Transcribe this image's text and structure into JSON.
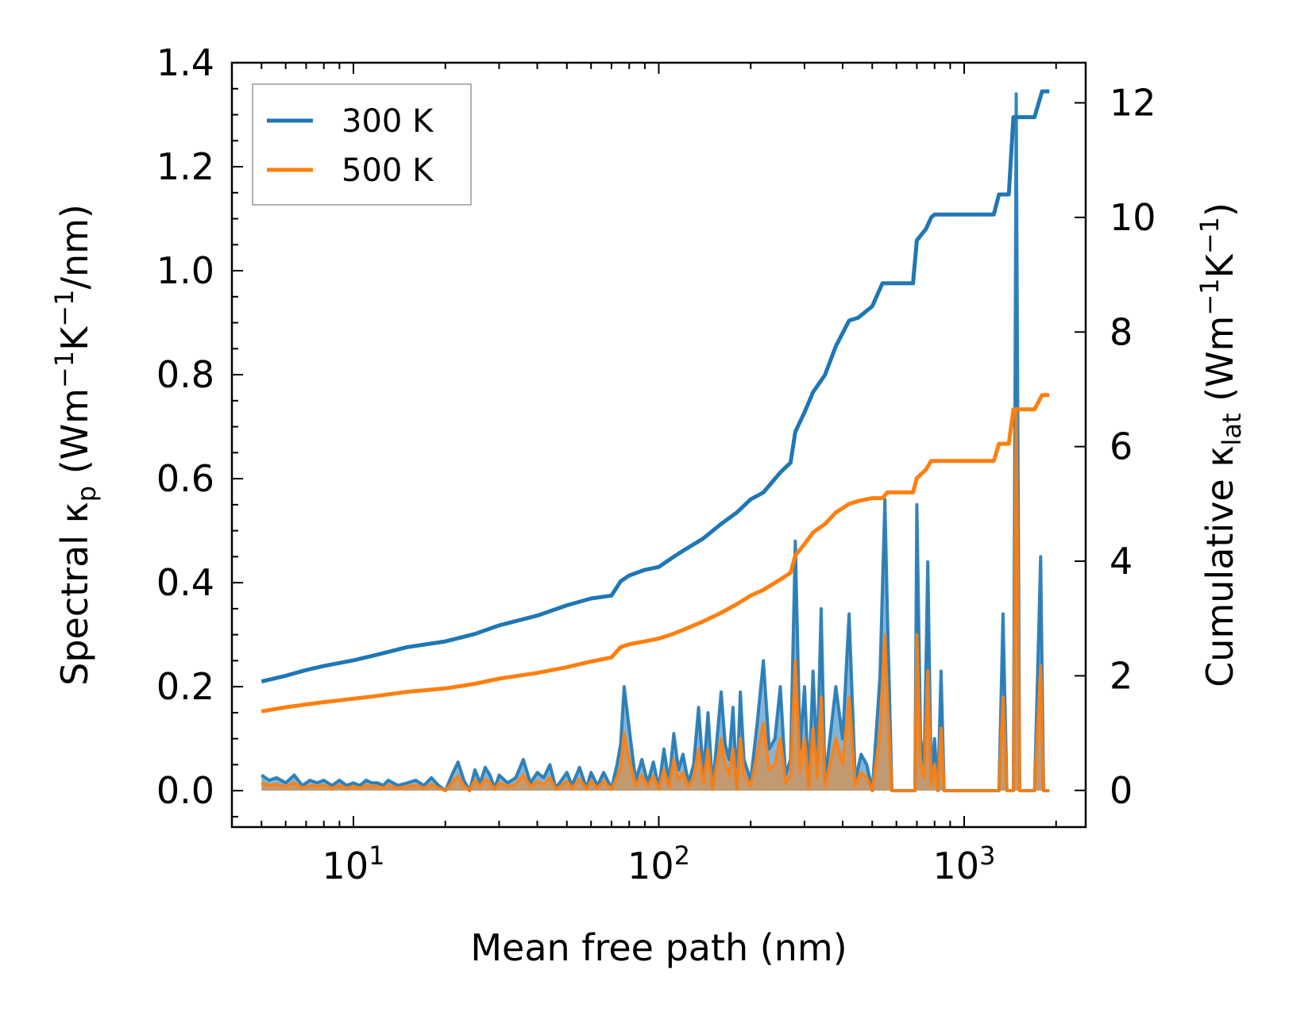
{
  "chart_data": {
    "type": "line",
    "title": "",
    "xlabel": "Mean free path (nm)",
    "ylabel_left": {
      "pre": "Spectral κ",
      "sub": "p",
      "post": " (Wm",
      "sup1": "−1",
      "mid": "K",
      "sup2": "−1",
      "tail": "/nm)"
    },
    "ylabel_right": {
      "pre": "Cumulative κ",
      "sub": "lat",
      "post": " (Wm",
      "sup1": "−1",
      "mid": "K",
      "sup2": "−1",
      "tail": ")"
    },
    "xscale": "log",
    "xlim": [
      4.0,
      2500
    ],
    "ylim_left": [
      -0.07,
      1.4
    ],
    "ylim_right": [
      -0.64,
      12.7
    ],
    "x_tick_labels": [
      {
        "value": 10,
        "base": "10",
        "exp": "1"
      },
      {
        "value": 100,
        "base": "10",
        "exp": "2"
      },
      {
        "value": 1000,
        "base": "10",
        "exp": "3"
      }
    ],
    "y_left_ticks": [
      {
        "value": 0.0,
        "label": "0.0"
      },
      {
        "value": 0.2,
        "label": "0.2"
      },
      {
        "value": 0.4,
        "label": "0.4"
      },
      {
        "value": 0.6,
        "label": "0.6"
      },
      {
        "value": 0.8,
        "label": "0.8"
      },
      {
        "value": 1.0,
        "label": "1.0"
      },
      {
        "value": 1.2,
        "label": "1.2"
      },
      {
        "value": 1.4,
        "label": "1.4"
      }
    ],
    "y_right_ticks": [
      {
        "value": 0,
        "label": "0"
      },
      {
        "value": 2,
        "label": "2"
      },
      {
        "value": 4,
        "label": "4"
      },
      {
        "value": 6,
        "label": "6"
      },
      {
        "value": 8,
        "label": "8"
      },
      {
        "value": 10,
        "label": "10"
      },
      {
        "value": 12,
        "label": "12"
      }
    ],
    "legend": {
      "location": "upper-left",
      "entries": [
        {
          "name": "300 K",
          "color": "#1f77b4"
        },
        {
          "name": "500 K",
          "color": "#ff7f0e"
        }
      ]
    },
    "series": [
      {
        "name": "300 K cumulative",
        "axis": "right",
        "color": "#1f77b4",
        "x": [
          5,
          6,
          7,
          8,
          10,
          12,
          15,
          20,
          25,
          30,
          40,
          50,
          60,
          70,
          75,
          80,
          90,
          100,
          110,
          120,
          140,
          160,
          180,
          200,
          220,
          250,
          270,
          280,
          300,
          320,
          350,
          380,
          420,
          450,
          500,
          540,
          560,
          680,
          700,
          750,
          780,
          800,
          1000,
          1250,
          1300,
          1400,
          1450,
          1500,
          1600,
          1700,
          1800,
          1900
        ],
        "y": [
          1.9,
          2.0,
          2.1,
          2.17,
          2.27,
          2.37,
          2.5,
          2.6,
          2.73,
          2.88,
          3.05,
          3.23,
          3.35,
          3.4,
          3.65,
          3.75,
          3.85,
          3.9,
          4.05,
          4.18,
          4.4,
          4.65,
          4.85,
          5.08,
          5.2,
          5.55,
          5.72,
          6.26,
          6.6,
          6.95,
          7.25,
          7.75,
          8.2,
          8.25,
          8.45,
          8.85,
          8.85,
          8.85,
          9.6,
          9.8,
          10.0,
          10.05,
          10.05,
          10.05,
          10.4,
          10.4,
          11.75,
          11.75,
          11.75,
          11.75,
          12.2,
          12.2
        ]
      },
      {
        "name": "500 K cumulative",
        "axis": "right",
        "color": "#ff7f0e",
        "x": [
          5,
          6,
          7,
          8,
          10,
          12,
          15,
          20,
          25,
          30,
          40,
          50,
          60,
          70,
          75,
          80,
          90,
          100,
          110,
          120,
          140,
          160,
          180,
          200,
          220,
          250,
          270,
          280,
          300,
          320,
          350,
          380,
          420,
          450,
          500,
          540,
          560,
          680,
          700,
          750,
          780,
          800,
          1000,
          1250,
          1300,
          1400,
          1450,
          1500,
          1600,
          1700,
          1800,
          1900
        ],
        "y": [
          1.38,
          1.45,
          1.5,
          1.54,
          1.6,
          1.65,
          1.72,
          1.78,
          1.86,
          1.95,
          2.05,
          2.15,
          2.25,
          2.32,
          2.5,
          2.55,
          2.6,
          2.65,
          2.72,
          2.8,
          2.95,
          3.1,
          3.25,
          3.4,
          3.5,
          3.68,
          3.8,
          4.1,
          4.3,
          4.5,
          4.65,
          4.85,
          5.0,
          5.05,
          5.1,
          5.1,
          5.2,
          5.2,
          5.45,
          5.6,
          5.75,
          5.75,
          5.75,
          5.75,
          6.05,
          6.05,
          6.65,
          6.65,
          6.65,
          6.65,
          6.9,
          6.9
        ]
      },
      {
        "name": "300 K spectral",
        "axis": "left",
        "color": "#1f77b4",
        "x": [
          5,
          5.3,
          5.6,
          6,
          6.4,
          6.8,
          7.2,
          7.6,
          8,
          8.5,
          9,
          9.5,
          10,
          10.5,
          11,
          11.5,
          12,
          12.5,
          13,
          14,
          15,
          16,
          17,
          18,
          19,
          20,
          21,
          22,
          23,
          24,
          25,
          26,
          27,
          28,
          29,
          30,
          32,
          34,
          36,
          38,
          40,
          42,
          44,
          46,
          48,
          50,
          52,
          55,
          58,
          60,
          63,
          66,
          70,
          73,
          75,
          77,
          80,
          84,
          88,
          92,
          96,
          100,
          104,
          108,
          112,
          116,
          120,
          125,
          130,
          135,
          140,
          145,
          150,
          160,
          165,
          170,
          175,
          180,
          185,
          190,
          200,
          210,
          220,
          230,
          240,
          250,
          260,
          270,
          280,
          290,
          300,
          310,
          320,
          330,
          340,
          350,
          360,
          380,
          400,
          420,
          440,
          460,
          480,
          500,
          530,
          550,
          560,
          580,
          600,
          650,
          690,
          700,
          720,
          740,
          760,
          780,
          800,
          820,
          840,
          860,
          900,
          1000,
          1100,
          1200,
          1260,
          1300,
          1340,
          1380,
          1420,
          1450,
          1480,
          1520,
          1560,
          1600,
          1700,
          1780,
          1820,
          1860,
          1900
        ],
        "y": [
          0.03,
          0.02,
          0.025,
          0.015,
          0.03,
          0.01,
          0.02,
          0.015,
          0.02,
          0.01,
          0.02,
          0.01,
          0.015,
          0.01,
          0.02,
          0.015,
          0.015,
          0.01,
          0.02,
          0.01,
          0.015,
          0.02,
          0.01,
          0.025,
          0.01,
          0.0,
          0.03,
          0.055,
          0.02,
          0.0,
          0.04,
          0.015,
          0.045,
          0.03,
          0.005,
          0.03,
          0.015,
          0.025,
          0.06,
          0.015,
          0.035,
          0.025,
          0.05,
          0.005,
          0.02,
          0.035,
          0.01,
          0.045,
          0.005,
          0.035,
          0.01,
          0.035,
          0.005,
          0.05,
          0.09,
          0.2,
          0.12,
          0.02,
          0.06,
          0.015,
          0.055,
          0.005,
          0.08,
          0.015,
          0.11,
          0.04,
          0.07,
          0.015,
          0.05,
          0.16,
          0.03,
          0.15,
          0.005,
          0.19,
          0.09,
          0.06,
          0.16,
          0.005,
          0.19,
          0.06,
          0.02,
          0.13,
          0.25,
          0.08,
          0.1,
          0.2,
          0.03,
          0.06,
          0.48,
          0.08,
          0.2,
          0.01,
          0.23,
          0.05,
          0.35,
          0.02,
          0.08,
          0.2,
          0.1,
          0.34,
          0.02,
          0.07,
          0.05,
          0.0,
          0.22,
          0.56,
          0.35,
          0.0,
          0.0,
          0.0,
          0.0,
          0.55,
          0.1,
          0.05,
          0.44,
          0.02,
          0.1,
          0.0,
          0.23,
          0.0,
          0.0,
          0.0,
          0.0,
          0.0,
          0.0,
          0.0,
          0.34,
          0.0,
          0.0,
          0.0,
          1.34,
          0.0,
          0.0,
          0.0,
          0.0,
          0.45,
          0.0,
          0.0,
          0.0
        ]
      },
      {
        "name": "500 K spectral",
        "axis": "left",
        "color": "#ff7f0e",
        "x": [
          5,
          5.3,
          5.6,
          6,
          6.4,
          6.8,
          7.2,
          7.6,
          8,
          8.5,
          9,
          9.5,
          10,
          10.5,
          11,
          11.5,
          12,
          12.5,
          13,
          14,
          15,
          16,
          17,
          18,
          19,
          20,
          21,
          22,
          23,
          24,
          25,
          26,
          27,
          28,
          29,
          30,
          32,
          34,
          36,
          38,
          40,
          42,
          44,
          46,
          48,
          50,
          52,
          55,
          58,
          60,
          63,
          66,
          70,
          73,
          75,
          77,
          80,
          84,
          88,
          92,
          96,
          100,
          104,
          108,
          112,
          116,
          120,
          125,
          130,
          135,
          140,
          145,
          150,
          160,
          165,
          170,
          175,
          180,
          185,
          190,
          200,
          210,
          220,
          230,
          240,
          250,
          260,
          270,
          280,
          290,
          300,
          310,
          320,
          330,
          340,
          350,
          360,
          380,
          400,
          420,
          440,
          460,
          480,
          500,
          530,
          550,
          560,
          580,
          600,
          650,
          690,
          700,
          720,
          740,
          760,
          780,
          800,
          820,
          840,
          860,
          900,
          1000,
          1100,
          1200,
          1260,
          1300,
          1340,
          1380,
          1420,
          1450,
          1480,
          1520,
          1560,
          1600,
          1700,
          1780,
          1820,
          1860,
          1900
        ],
        "y": [
          0.015,
          0.01,
          0.012,
          0.008,
          0.015,
          0.005,
          0.01,
          0.008,
          0.01,
          0.005,
          0.01,
          0.005,
          0.008,
          0.005,
          0.01,
          0.008,
          0.008,
          0.005,
          0.01,
          0.005,
          0.008,
          0.01,
          0.005,
          0.012,
          0.005,
          0.0,
          0.015,
          0.028,
          0.01,
          0.0,
          0.02,
          0.008,
          0.022,
          0.015,
          0.003,
          0.015,
          0.008,
          0.012,
          0.03,
          0.008,
          0.018,
          0.012,
          0.025,
          0.003,
          0.01,
          0.018,
          0.005,
          0.022,
          0.003,
          0.018,
          0.005,
          0.018,
          0.003,
          0.025,
          0.045,
          0.11,
          0.06,
          0.01,
          0.03,
          0.008,
          0.028,
          0.003,
          0.04,
          0.008,
          0.06,
          0.02,
          0.035,
          0.008,
          0.025,
          0.08,
          0.015,
          0.08,
          0.003,
          0.1,
          0.05,
          0.03,
          0.08,
          0.003,
          0.1,
          0.03,
          0.01,
          0.07,
          0.13,
          0.04,
          0.05,
          0.1,
          0.015,
          0.03,
          0.25,
          0.04,
          0.1,
          0.005,
          0.12,
          0.025,
          0.18,
          0.01,
          0.04,
          0.1,
          0.05,
          0.18,
          0.01,
          0.035,
          0.025,
          0.0,
          0.11,
          0.3,
          0.18,
          0.0,
          0.0,
          0.0,
          0.0,
          0.3,
          0.05,
          0.025,
          0.23,
          0.01,
          0.05,
          0.0,
          0.12,
          0.0,
          0.0,
          0.0,
          0.0,
          0.0,
          0.0,
          0.0,
          0.18,
          0.0,
          0.0,
          0.0,
          0.73,
          0.0,
          0.0,
          0.0,
          0.0,
          0.24,
          0.0,
          0.0,
          0.0
        ]
      }
    ]
  }
}
